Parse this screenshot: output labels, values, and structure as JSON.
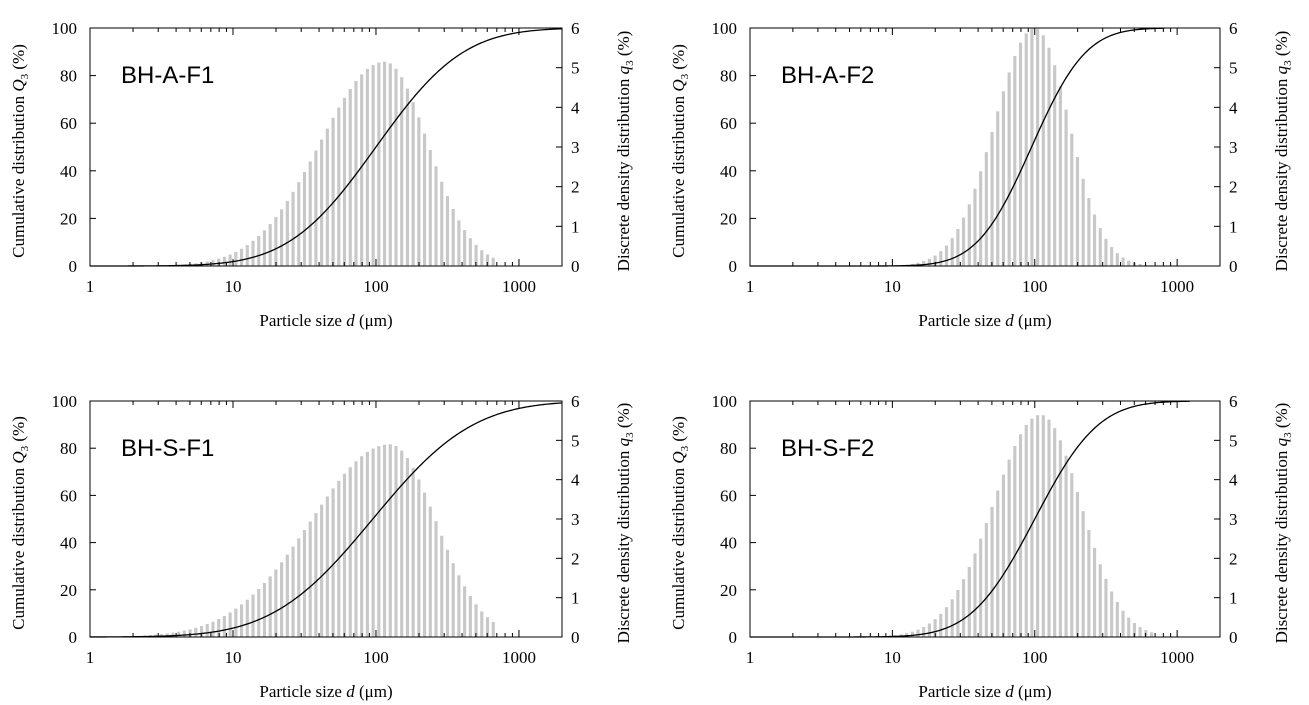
{
  "figure": {
    "xlabel": "Particle size d (μm)",
    "ylabel_left": "Cumulative distribution Q3 (%)",
    "ylabel_right": "Discrete density distribution q3 (%)",
    "x_ticks": [
      "1",
      "10",
      "100",
      "1000"
    ],
    "y_left_ticks": [
      "0",
      "20",
      "40",
      "60",
      "80",
      "100"
    ],
    "y_right_ticks": [
      "0",
      "1",
      "2",
      "3",
      "4",
      "5",
      "6"
    ],
    "bar_color": "#c8c8c8",
    "line_color": "#000000"
  },
  "chart_data": [
    {
      "type": "bar",
      "title": "BH-A-F1",
      "xlabel": "Particle size d (μm)",
      "ylabel": "Cumulative distribution Q3 (%)",
      "y2label": "Discrete density distribution q3 (%)",
      "x_scale": "log",
      "xlim": [
        1,
        2000
      ],
      "ylim": [
        0,
        100
      ],
      "y2lim": [
        0,
        6
      ],
      "q3_peak": 5.15,
      "q3_peak_size": 115,
      "q3_spread_left": 0.45,
      "q3_spread_right": 0.3,
      "cumulative_d50": 100,
      "cumulative_spread": 0.48
    },
    {
      "type": "bar",
      "title": "BH-A-F2",
      "xlabel": "Particle size d (μm)",
      "ylabel": "Cumulative distribution Q3 (%)",
      "y2label": "Discrete density distribution q3 (%)",
      "x_scale": "log",
      "xlim": [
        1,
        2000
      ],
      "ylim": [
        0,
        100
      ],
      "y2lim": [
        0,
        6
      ],
      "q3_peak": 6.0,
      "q3_peak_size": 100,
      "q3_spread_left": 0.28,
      "q3_spread_right": 0.24,
      "cumulative_d50": 95,
      "cumulative_spread": 0.3
    },
    {
      "type": "bar",
      "title": "BH-S-F1",
      "xlabel": "Particle size d (μm)",
      "ylabel": "Cumulative distribution Q3 (%)",
      "y2label": "Discrete density distribution q3 (%)",
      "x_scale": "log",
      "xlim": [
        1,
        2000
      ],
      "ylim": [
        0,
        100
      ],
      "y2lim": [
        0,
        6
      ],
      "q3_peak": 4.9,
      "q3_peak_size": 125,
      "q3_spread_left": 0.55,
      "q3_spread_right": 0.32,
      "cumulative_d50": 95,
      "cumulative_spread": 0.55
    },
    {
      "type": "bar",
      "title": "BH-S-F2",
      "xlabel": "Particle size d (μm)",
      "ylabel": "Cumulative distribution Q3 (%)",
      "y2label": "Discrete density distribution q3 (%)",
      "x_scale": "log",
      "xlim": [
        1,
        2000
      ],
      "ylim": [
        0,
        100
      ],
      "y2lim": [
        0,
        6
      ],
      "q3_peak": 5.65,
      "q3_peak_size": 110,
      "q3_spread_left": 0.33,
      "q3_spread_right": 0.28,
      "cumulative_d50": 100,
      "cumulative_spread": 0.35
    }
  ]
}
